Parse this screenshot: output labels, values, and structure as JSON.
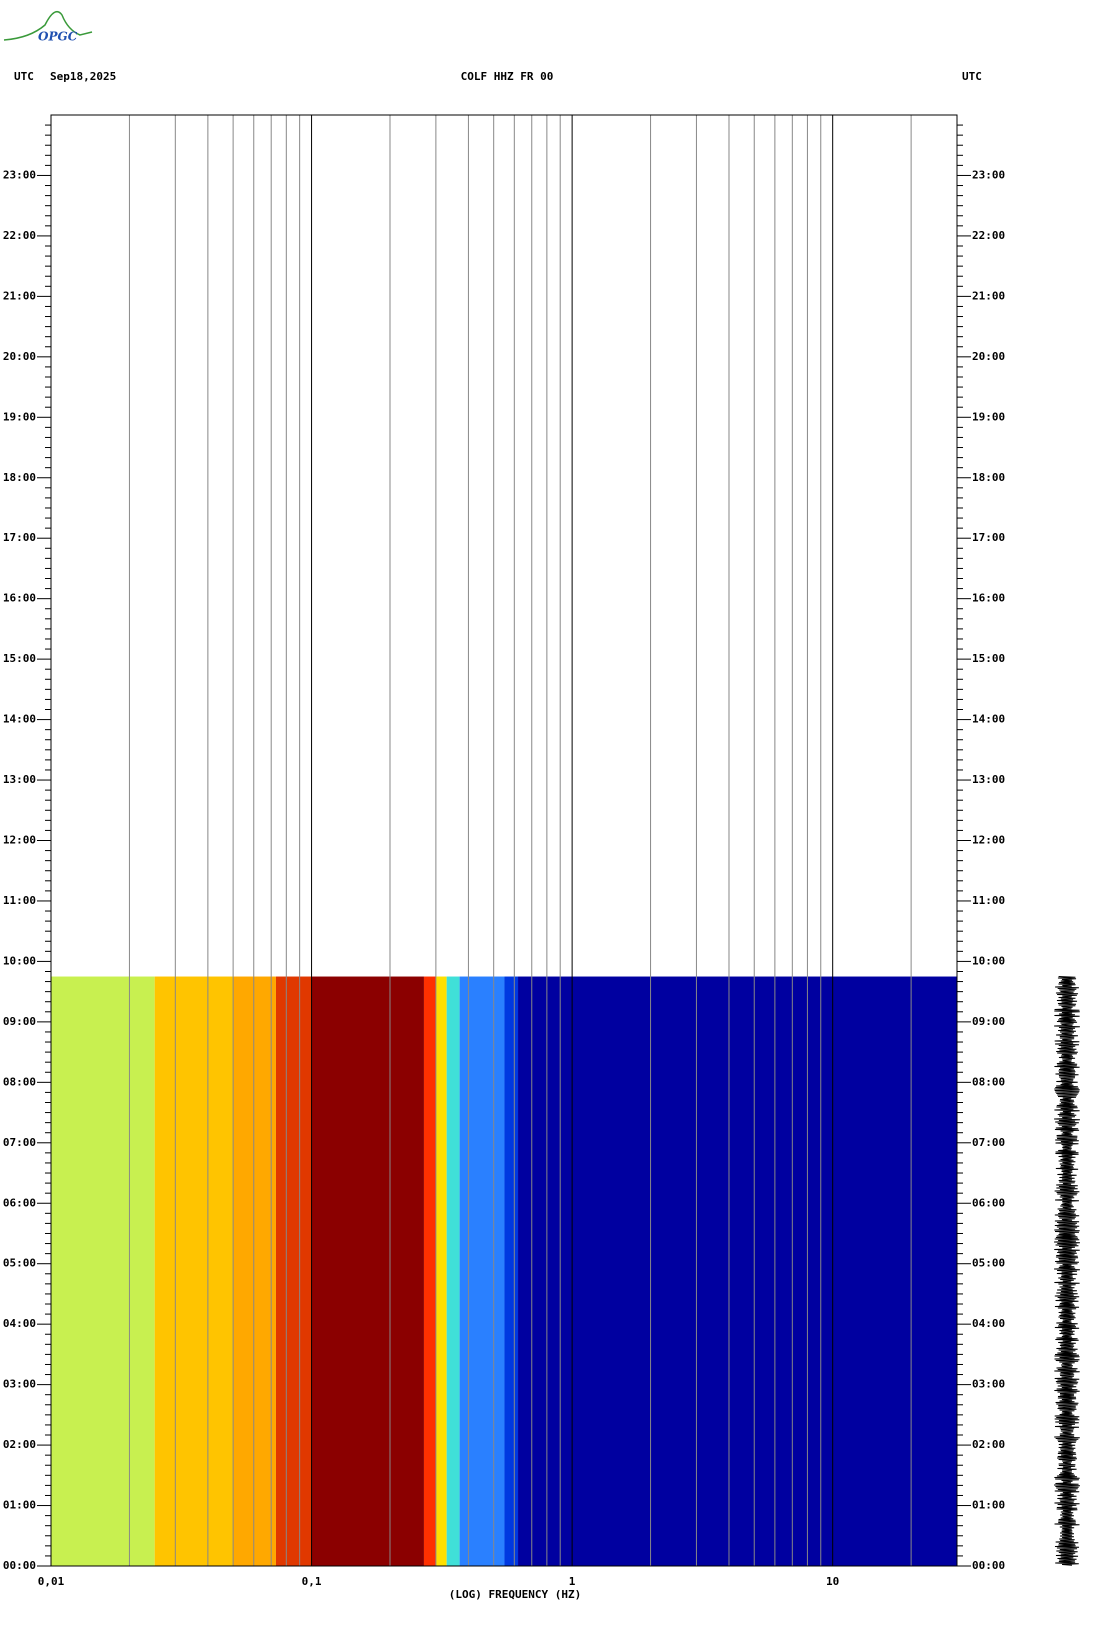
{
  "logo": "OPGC",
  "chart_data": {
    "type": "spectrogram",
    "title": "COLF HHZ FR 00",
    "left_label": "UTC",
    "date": "Sep18,2025",
    "right_label": "UTC",
    "xlabel": "(LOG) FREQUENCY (HZ)",
    "log_x": true,
    "xlim": [
      0.01,
      30
    ],
    "xticks": [
      {
        "value": 0.01,
        "label": "0,01"
      },
      {
        "value": 0.1,
        "label": "0,1"
      },
      1,
      10
    ],
    "minor_xticks": [
      0.02,
      0.03,
      0.04,
      0.05,
      0.06,
      0.07,
      0.08,
      0.09,
      0.2,
      0.3,
      0.4,
      0.5,
      0.6,
      0.7,
      0.8,
      0.9,
      2,
      3,
      4,
      5,
      6,
      7,
      8,
      9,
      20
    ],
    "ylim": [
      0,
      24
    ],
    "yticks": [
      {
        "value": 0,
        "label": "00:00"
      },
      {
        "value": 1,
        "label": "01:00"
      },
      {
        "value": 2,
        "label": "02:00"
      },
      {
        "value": 3,
        "label": "03:00"
      },
      {
        "value": 4,
        "label": "04:00"
      },
      {
        "value": 5,
        "label": "05:00"
      },
      {
        "value": 6,
        "label": "06:00"
      },
      {
        "value": 7,
        "label": "07:00"
      },
      {
        "value": 8,
        "label": "08:00"
      },
      {
        "value": 9,
        "label": "09:00"
      },
      {
        "value": 10,
        "label": "10:00"
      },
      {
        "value": 11,
        "label": "11:00"
      },
      {
        "value": 12,
        "label": "12:00"
      },
      {
        "value": 13,
        "label": "13:00"
      },
      {
        "value": 14,
        "label": "14:00"
      },
      {
        "value": 15,
        "label": "15:00"
      },
      {
        "value": 16,
        "label": "16:00"
      },
      {
        "value": 17,
        "label": "17:00"
      },
      {
        "value": 18,
        "label": "18:00"
      },
      {
        "value": 19,
        "label": "19:00"
      },
      {
        "value": 20,
        "label": "20:00"
      },
      {
        "value": 21,
        "label": "21:00"
      },
      {
        "value": 22,
        "label": "22:00"
      },
      {
        "value": 23,
        "label": "23:00"
      }
    ],
    "data_until": 9.75,
    "bands": [
      {
        "from": 0.01,
        "to": 0.025,
        "color": "#c8f050"
      },
      {
        "from": 0.025,
        "to": 0.05,
        "color": "#ffc400"
      },
      {
        "from": 0.05,
        "to": 0.073,
        "color": "#ffa800"
      },
      {
        "from": 0.073,
        "to": 0.1,
        "color": "#e03800"
      },
      {
        "from": 0.1,
        "to": 0.27,
        "color": "#8b0000"
      },
      {
        "from": 0.27,
        "to": 0.3,
        "color": "#ff3000"
      },
      {
        "from": 0.3,
        "to": 0.33,
        "color": "#ffe000"
      },
      {
        "from": 0.33,
        "to": 0.37,
        "color": "#40e0d8"
      },
      {
        "from": 0.37,
        "to": 0.55,
        "color": "#2a80ff"
      },
      {
        "from": 0.55,
        "to": 0.62,
        "color": "#0038e0"
      },
      {
        "from": 0.62,
        "to": 30,
        "color": "#0000a0"
      }
    ]
  }
}
